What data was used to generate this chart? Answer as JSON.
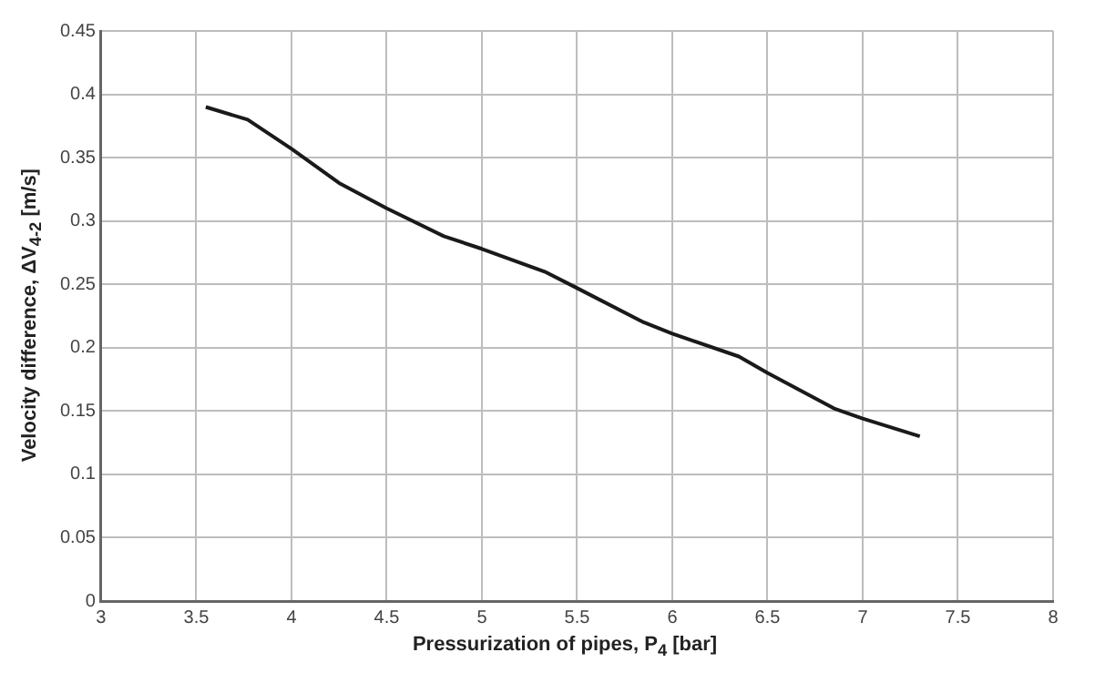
{
  "chart_data": {
    "type": "line",
    "xlabel": "Pressurization of pipes, P$_{4}$ [bar]",
    "ylabel": "Velocity difference, ΔV$_{4-2}$ [m/s]",
    "x": [
      3.55,
      3.77,
      4.0,
      4.25,
      4.5,
      4.8,
      5.0,
      5.33,
      5.5,
      5.85,
      6.0,
      6.35,
      6.5,
      6.85,
      7.0,
      7.3
    ],
    "series": [
      {
        "color": "#1a1a1a",
        "values": [
          0.39,
          0.38,
          0.357,
          0.33,
          0.31,
          0.288,
          0.278,
          0.26,
          0.247,
          0.22,
          0.211,
          0.193,
          0.18,
          0.152,
          0.144,
          0.13
        ]
      }
    ],
    "xlim": [
      3,
      8
    ],
    "xticks": [
      3,
      3.5,
      4,
      4.5,
      5,
      5.5,
      6,
      6.5,
      7,
      7.5,
      8
    ],
    "ylim": [
      0,
      0.45
    ],
    "yticks": [
      0,
      0.05,
      0.1,
      0.15,
      0.2,
      0.25,
      0.3,
      0.35,
      0.4,
      0.45
    ],
    "grid": true,
    "legend": false,
    "marker": "none",
    "line_style": "solid"
  }
}
